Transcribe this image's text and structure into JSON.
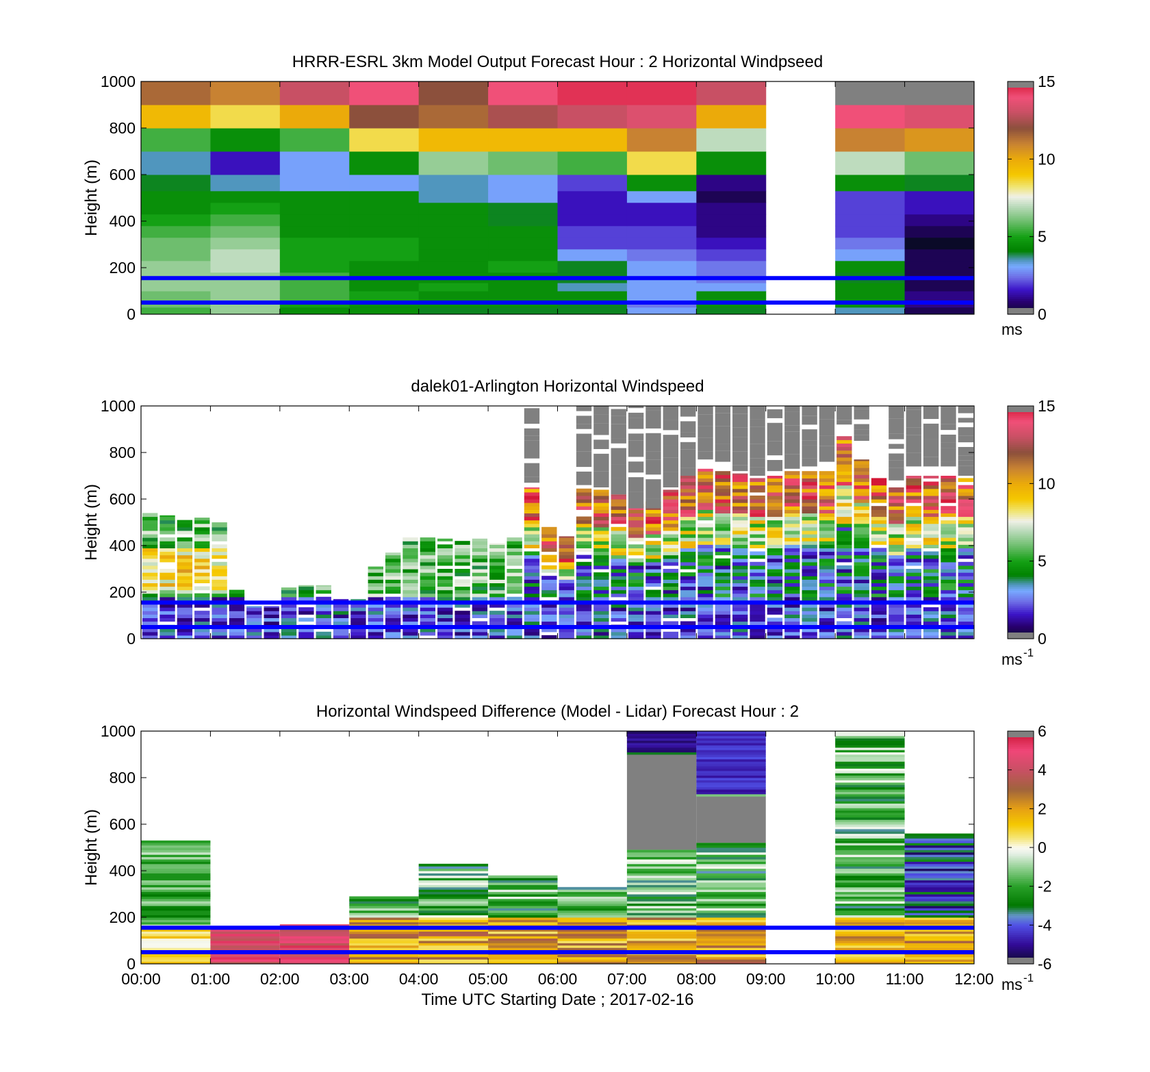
{
  "chart_data": [
    {
      "type": "heatmap",
      "title": "HRRR-ESRL 3km Model Output   Forecast Hour : 2 Horizontal Windpseed",
      "ylabel": "Height (m)",
      "xlabel": "",
      "ylim": [
        0,
        1000
      ],
      "xlim": [
        0,
        12
      ],
      "yticks": [
        "0",
        "200",
        "400",
        "600",
        "800",
        "1000"
      ],
      "xticks": [
        "",
        "",
        "",
        "",
        "",
        "",
        "",
        "",
        "",
        "",
        "",
        "",
        ""
      ],
      "colorbar": {
        "ticks": [
          "0",
          "5",
          "10",
          "15"
        ],
        "range": [
          0,
          15
        ],
        "unit": "ms",
        "unit_sup": "",
        "colormap": "wind"
      },
      "reference_lines_m": [
        155,
        50
      ],
      "y_edges": [
        0,
        30,
        60,
        100,
        135,
        180,
        230,
        280,
        330,
        380,
        430,
        480,
        530,
        600,
        700,
        800,
        900,
        1000
      ],
      "cell_values": [
        [
          5.5,
          6.5,
          4.5,
          4.5,
          4.0,
          4.0,
          4.0,
          3.0,
          4.0,
          null,
          3.5,
          0.5
        ],
        [
          6.0,
          6.5,
          5.0,
          4.5,
          4.5,
          4.5,
          4.0,
          2.5,
          4.5,
          null,
          4.5,
          1.0
        ],
        [
          6.0,
          6.5,
          5.5,
          5.0,
          4.5,
          4.5,
          4.5,
          3.0,
          4.5,
          null,
          4.5,
          1.0
        ],
        [
          6.5,
          6.5,
          5.5,
          4.5,
          5.0,
          4.5,
          3.5,
          3.0,
          3.0,
          null,
          4.5,
          0.5
        ],
        [
          6.5,
          6.5,
          5.5,
          4.5,
          4.5,
          4.5,
          4.0,
          3.0,
          2.5,
          null,
          4.0,
          0.5
        ],
        [
          6.5,
          7.0,
          5.0,
          4.5,
          4.5,
          5.0,
          4.0,
          3.0,
          2.5,
          null,
          4.5,
          0.5
        ],
        [
          6.0,
          7.0,
          5.0,
          5.0,
          4.5,
          4.5,
          3.0,
          2.5,
          2.0,
          null,
          3.0,
          0.5
        ],
        [
          6.0,
          6.5,
          5.0,
          5.0,
          4.5,
          4.5,
          2.0,
          2.0,
          1.5,
          null,
          2.5,
          0.0
        ],
        [
          5.5,
          6.0,
          4.5,
          4.5,
          4.5,
          4.5,
          2.0,
          2.0,
          1.0,
          null,
          2.0,
          0.5
        ],
        [
          5.0,
          5.5,
          4.5,
          4.5,
          4.5,
          4.0,
          1.5,
          1.5,
          1.0,
          null,
          2.0,
          1.0
        ],
        [
          4.5,
          5.0,
          4.5,
          4.5,
          4.5,
          4.0,
          1.5,
          1.5,
          1.0,
          null,
          2.0,
          1.5
        ],
        [
          4.5,
          4.5,
          4.5,
          4.5,
          3.5,
          3.0,
          1.5,
          3.0,
          0.5,
          null,
          2.0,
          1.5
        ],
        [
          4.0,
          3.5,
          3.0,
          3.0,
          3.5,
          3.0,
          2.0,
          4.5,
          1.0,
          null,
          4.5,
          4.0
        ],
        [
          3.5,
          1.5,
          3.0,
          4.5,
          6.5,
          6.0,
          5.5,
          8.5,
          4.5,
          null,
          7.0,
          6.0
        ],
        [
          5.5,
          4.5,
          5.5,
          8.5,
          9.5,
          9.5,
          9.5,
          11.0,
          7.0,
          null,
          11.0,
          10.5
        ],
        [
          9.5,
          8.5,
          10.0,
          12.0,
          11.5,
          12.5,
          13.0,
          13.5,
          10.0,
          null,
          14.0,
          13.5
        ],
        [
          11.5,
          11.0,
          13.0,
          14.0,
          12.0,
          14.0,
          14.5,
          14.5,
          13.0,
          null,
          -1,
          -1
        ]
      ]
    },
    {
      "type": "heatmap",
      "title": "dalek01-Arlington  Horizontal Windspeed",
      "ylabel": "Height (m)",
      "xlabel": "",
      "ylim": [
        0,
        1000
      ],
      "xlim": [
        0,
        12
      ],
      "yticks": [
        "0",
        "200",
        "400",
        "600",
        "800",
        "1000"
      ],
      "xticks": [
        "",
        "",
        "",
        "",
        "",
        "",
        "",
        "",
        "",
        "",
        "",
        "",
        ""
      ],
      "colorbar": {
        "ticks": [
          "0",
          "5",
          "10",
          "15"
        ],
        "range": [
          0,
          15
        ],
        "unit": "ms",
        "unit_sup": "-1",
        "colormap": "wind"
      },
      "reference_lines_m": [
        155,
        50
      ],
      "time_bin_hours": 0.25,
      "profile_tops_m": [
        540,
        530,
        510,
        520,
        500,
        210,
        140,
        140,
        220,
        230,
        230,
        170,
        170,
        310,
        370,
        440,
        440,
        430,
        420,
        430,
        410,
        440,
        650,
        480,
        440,
        650,
        640,
        620,
        580,
        590,
        640,
        700,
        730,
        720,
        710,
        690,
        700,
        720,
        720,
        720,
        880,
        770,
        690,
        650,
        700,
        700,
        700,
        690
      ],
      "invalid_above_m": [
        null,
        null,
        null,
        null,
        null,
        null,
        null,
        null,
        null,
        null,
        null,
        null,
        null,
        null,
        null,
        null,
        null,
        null,
        null,
        null,
        null,
        null,
        670,
        null,
        null,
        660,
        650,
        620,
        560,
        560,
        650,
        700,
        770,
        760,
        720,
        700,
        720,
        730,
        740,
        760,
        920,
        850,
        null,
        680,
        740,
        740,
        740,
        700
      ]
    },
    {
      "type": "heatmap",
      "title": "Horizontal Windspeed Difference (Model - Lidar) Forecast Hour : 2",
      "ylabel": "Height (m)",
      "xlabel": "Time UTC  Starting Date ; 2017-02-16",
      "ylim": [
        0,
        1000
      ],
      "xlim": [
        0,
        12
      ],
      "yticks": [
        "0",
        "200",
        "400",
        "600",
        "800",
        "1000"
      ],
      "xticks": [
        "00:00",
        "01:00",
        "02:00",
        "03:00",
        "04:00",
        "05:00",
        "06:00",
        "07:00",
        "08:00",
        "09:00",
        "10:00",
        "11:00",
        "12:00"
      ],
      "colorbar": {
        "ticks": [
          "-6",
          "-4",
          "-2",
          "0",
          "2",
          "4",
          "6"
        ],
        "range": [
          -6,
          6
        ],
        "unit": "ms",
        "unit_sup": "-1",
        "colormap": "diff"
      },
      "reference_lines_m": [
        155,
        50
      ],
      "column_tops_m": [
        530,
        150,
        170,
        290,
        430,
        380,
        330,
        1000,
        1000,
        0,
        1000,
        560
      ],
      "gray_band_m": [
        [
          0,
          0
        ],
        [
          0,
          0
        ],
        [
          0,
          0
        ],
        [
          0,
          0
        ],
        [
          0,
          0
        ],
        [
          0,
          0
        ],
        [
          0,
          0
        ],
        [
          490,
          900
        ],
        [
          520,
          720
        ],
        [
          0,
          0
        ],
        [
          0,
          0
        ],
        [
          0,
          0
        ]
      ]
    }
  ]
}
